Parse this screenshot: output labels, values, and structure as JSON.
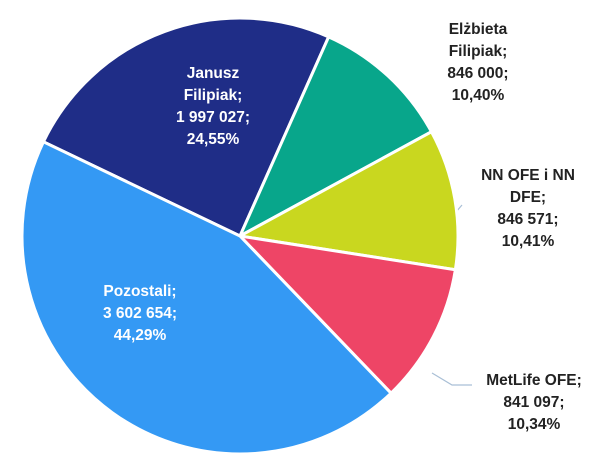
{
  "chart_data": {
    "type": "pie",
    "categories": [
      "Janusz Filipiak;",
      "Elżbieta Filipiak;",
      "NN OFE i NN DFE;",
      "MetLife OFE;",
      "Pozostali;"
    ],
    "share_labels": [
      "1 997 027;",
      "846 000;",
      "846 571;",
      "841 097;",
      "3 602 654;"
    ],
    "values": [
      24.55,
      10.4,
      10.41,
      10.34,
      44.29
    ],
    "value_labels": [
      "24,55%",
      "10,40%",
      "10,41%",
      "10,34%",
      "44,29%"
    ],
    "colors": [
      "#1f2d87",
      "#08a68b",
      "#c9d71f",
      "#ee4566",
      "#3499f4"
    ]
  }
}
